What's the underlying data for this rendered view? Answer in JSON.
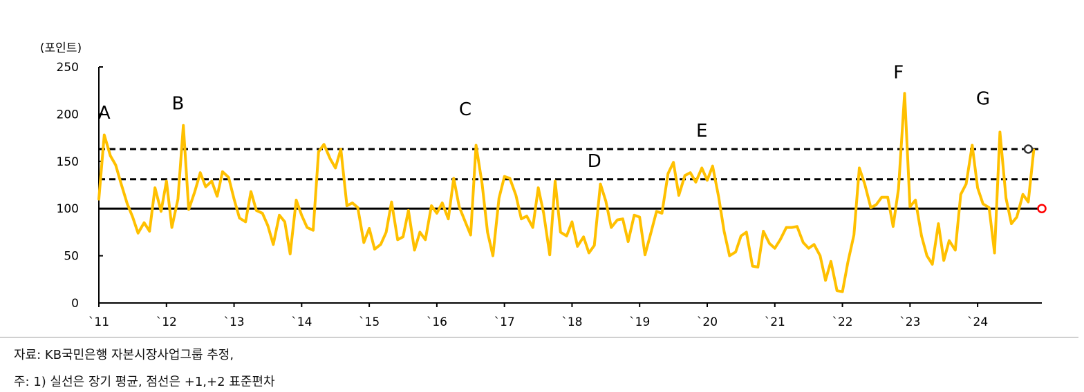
{
  "chart_data": {
    "type": "line",
    "ylabel_unit": "(포인트)",
    "ylim": [
      0,
      250
    ],
    "yticks": [
      0,
      50,
      100,
      150,
      200,
      250
    ],
    "xtick_labels": [
      "`11",
      "`12",
      "`13",
      "`14",
      "`15",
      "`16",
      "`17",
      "`18",
      "`19",
      "`20",
      "`21",
      "`22",
      "`23",
      "`24"
    ],
    "xlim": [
      2011.0,
      2024.95
    ],
    "line_color": "#FFC000",
    "reference_lines": [
      {
        "value": 100,
        "style": "solid"
      },
      {
        "value": 131,
        "style": "dashed"
      },
      {
        "value": 163,
        "style": "dashed"
      }
    ],
    "series": [
      {
        "x": [
          2011.0,
          2011.08,
          2011.17,
          2011.25,
          2011.33,
          2011.42,
          2011.5,
          2011.58,
          2011.67,
          2011.75,
          2011.83,
          2011.92,
          2012.0,
          2012.08,
          2012.17,
          2012.25,
          2012.33,
          2012.42,
          2012.5,
          2012.58,
          2012.67,
          2012.75,
          2012.83,
          2012.92,
          2013.0,
          2013.08,
          2013.17,
          2013.25,
          2013.33,
          2013.42,
          2013.5,
          2013.58,
          2013.67,
          2013.75,
          2013.83,
          2013.92,
          2014.0,
          2014.08,
          2014.17,
          2014.25,
          2014.33,
          2014.42,
          2014.5,
          2014.58,
          2014.67,
          2014.75,
          2014.83,
          2014.92,
          2015.0,
          2015.08,
          2015.17,
          2015.25,
          2015.33,
          2015.42,
          2015.5,
          2015.58,
          2015.67,
          2015.75,
          2015.83,
          2015.92,
          2016.0,
          2016.08,
          2016.17,
          2016.25,
          2016.33,
          2016.42,
          2016.5,
          2016.58,
          2016.67,
          2016.75,
          2016.83,
          2016.92,
          2017.0,
          2017.08,
          2017.17,
          2017.25,
          2017.33,
          2017.42,
          2017.5,
          2017.58,
          2017.67,
          2017.75,
          2017.83,
          2017.92,
          2018.0,
          2018.08,
          2018.17,
          2018.25,
          2018.33,
          2018.42,
          2018.5,
          2018.58,
          2018.67,
          2018.75,
          2018.83,
          2018.92,
          2019.0,
          2019.08,
          2019.17,
          2019.25,
          2019.33,
          2019.42,
          2019.5,
          2019.58,
          2019.67,
          2019.75,
          2019.83,
          2019.92,
          2020.0,
          2020.08,
          2020.17,
          2020.25,
          2020.33,
          2020.42,
          2020.5,
          2020.58,
          2020.67,
          2020.75,
          2020.83,
          2020.92,
          2021.0,
          2021.08,
          2021.17,
          2021.25,
          2021.33,
          2021.42,
          2021.5,
          2021.58,
          2021.67,
          2021.75,
          2021.83,
          2021.92,
          2022.0,
          2022.08,
          2022.17,
          2022.25,
          2022.33,
          2022.42,
          2022.5,
          2022.58,
          2022.67,
          2022.75,
          2022.83,
          2022.92,
          2023.0,
          2023.08,
          2023.17,
          2023.25,
          2023.33,
          2023.42,
          2023.5,
          2023.58,
          2023.67,
          2023.75,
          2023.83,
          2023.92,
          2024.0,
          2024.08,
          2024.17,
          2024.25,
          2024.33,
          2024.42,
          2024.5,
          2024.58,
          2024.67,
          2024.75,
          2024.83
        ],
        "y": [
          110,
          178,
          156,
          146,
          126,
          105,
          91,
          74,
          85,
          76,
          122,
          97,
          129,
          80,
          110,
          188,
          99,
          118,
          138,
          123,
          129,
          113,
          139,
          133,
          110,
          90,
          86,
          118,
          98,
          95,
          82,
          62,
          93,
          86,
          52,
          109,
          93,
          80,
          77,
          160,
          168,
          153,
          143,
          163,
          103,
          106,
          101,
          64,
          79,
          57,
          62,
          75,
          107,
          67,
          70,
          98,
          56,
          75,
          67,
          103,
          95,
          106,
          89,
          132,
          102,
          86,
          72,
          167,
          126,
          75,
          50,
          111,
          134,
          132,
          114,
          89,
          92,
          80,
          122,
          95,
          51,
          129,
          75,
          71,
          86,
          60,
          70,
          53,
          61,
          126,
          108,
          80,
          88,
          89,
          65,
          93,
          91,
          51,
          75,
          97,
          95,
          137,
          149,
          114,
          135,
          138,
          128,
          143,
          130,
          145,
          112,
          76,
          50,
          54,
          71,
          75,
          39,
          38,
          76,
          63,
          58,
          67,
          80,
          80,
          81,
          64,
          58,
          62,
          50,
          24,
          44,
          13,
          12,
          43,
          72,
          143,
          126,
          101,
          104,
          112,
          112,
          81,
          121,
          222,
          102,
          109,
          71,
          50,
          41,
          84,
          45,
          66,
          56,
          115,
          126,
          167,
          122,
          105,
          101,
          53,
          181,
          111,
          84,
          91,
          115,
          107,
          162
        ]
      }
    ],
    "markers": [
      {
        "x": 2024.75,
        "y": 163,
        "color": "#333333"
      },
      {
        "x": 2024.95,
        "y": 100,
        "color": "#FF0000"
      }
    ],
    "annotations": [
      {
        "text": "A",
        "x": 2011.08,
        "y": 195
      },
      {
        "text": "B",
        "x": 2012.17,
        "y": 205
      },
      {
        "text": "C",
        "x": 2016.42,
        "y": 199
      },
      {
        "text": "D",
        "x": 2018.33,
        "y": 144
      },
      {
        "text": "E",
        "x": 2019.92,
        "y": 176
      },
      {
        "text": "F",
        "x": 2022.83,
        "y": 238
      },
      {
        "text": "G",
        "x": 2024.08,
        "y": 210
      }
    ]
  },
  "source_note": "자료: KB국민은행 자본시장사업그룹 추정,",
  "footnote": "주: 1) 실선은 장기 평균, 점선은 +1,+2 표준편차"
}
